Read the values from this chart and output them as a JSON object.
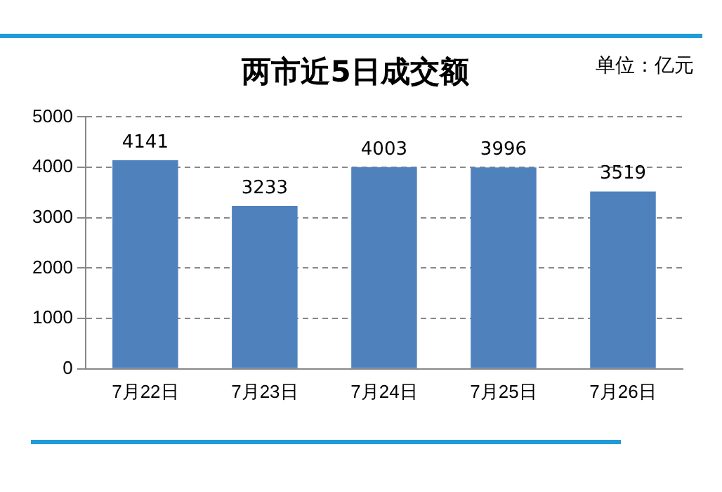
{
  "chart_data": {
    "type": "bar",
    "title": "两市近5日成交额",
    "annotations": [
      "单位：亿元"
    ],
    "categories": [
      "7月22日",
      "7月23日",
      "7月24日",
      "7月25日",
      "7月26日"
    ],
    "values": [
      4141,
      3233,
      4003,
      3996,
      3519
    ],
    "color": "#4f81bd",
    "ylim": [
      0,
      5000
    ],
    "yticks": [
      0,
      1000,
      2000,
      3000,
      4000,
      5000
    ],
    "grid": "y",
    "data_labels": true,
    "legend": false
  }
}
